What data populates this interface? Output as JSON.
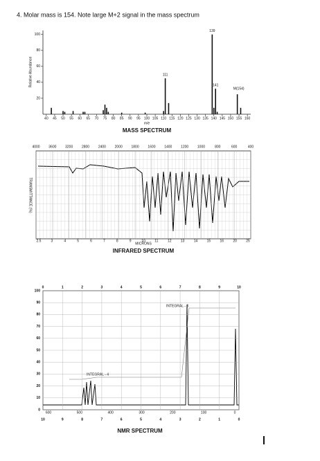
{
  "question": "4.  Molar mass is 154.  Note large M+2 signal in the mass spectrum",
  "mass_spectrum": {
    "type": "bar",
    "title": "MASS SPECTRUM",
    "x_label": "m/e",
    "y_label": "Relative Abundance",
    "x": [
      43,
      50,
      51,
      56,
      62,
      63,
      74,
      75,
      76,
      77,
      85,
      99,
      110,
      111,
      113,
      139,
      140,
      141,
      142,
      154,
      156
    ],
    "values": [
      8,
      4,
      3,
      4,
      3,
      3,
      5,
      12,
      8,
      3,
      2,
      2,
      4,
      45,
      14,
      100,
      8,
      32,
      3,
      25,
      8
    ],
    "peak_labels": [
      {
        "index": 15
      },
      {
        "index": 13
      },
      {
        "index": 17
      }
    ],
    "molecular_ion_label": "M(154)",
    "color": "#111111",
    "xlim": [
      38,
      162
    ],
    "ylim": [
      0,
      105
    ],
    "xticks": [
      40,
      45,
      50,
      55,
      60,
      65,
      70,
      75,
      80,
      85,
      90,
      95,
      100,
      105,
      110,
      115,
      120,
      125,
      130,
      135,
      140,
      145,
      150,
      155,
      160
    ],
    "yticks": [
      20,
      40,
      60,
      80,
      100
    ]
  },
  "infrared_spectrum": {
    "title": "INFRARED SPECTRUM",
    "y_label": "TRANSMITTANCE (%)",
    "x_label": "MICRONS",
    "wavenumber_ticks": [
      4000,
      3600,
      3200,
      2800,
      2400,
      2000,
      1800,
      1600,
      1400,
      1200,
      1000,
      800,
      600,
      400
    ],
    "micron_ticks": [
      2.5,
      3,
      4,
      5,
      6,
      7,
      8,
      9,
      10,
      11,
      12,
      13,
      14,
      15,
      16,
      20,
      25
    ]
  },
  "nmr_spectrum": {
    "title": "NMR SPECTRUM",
    "integral_labels": [
      "INTEGRAL - 4",
      "INTEGRAL - 3"
    ],
    "yticks": [
      100,
      90,
      80,
      70,
      60,
      50,
      40,
      30,
      20,
      10,
      0
    ],
    "tau_ticks": [
      0,
      1,
      2,
      3,
      4,
      5,
      6,
      7,
      8,
      9,
      10
    ],
    "ppm_ticks": [
      10,
      9,
      8,
      7,
      6,
      5,
      4,
      3,
      2,
      1,
      0
    ],
    "hz_ticks": [
      600,
      500,
      400,
      300,
      200,
      100,
      0
    ]
  }
}
